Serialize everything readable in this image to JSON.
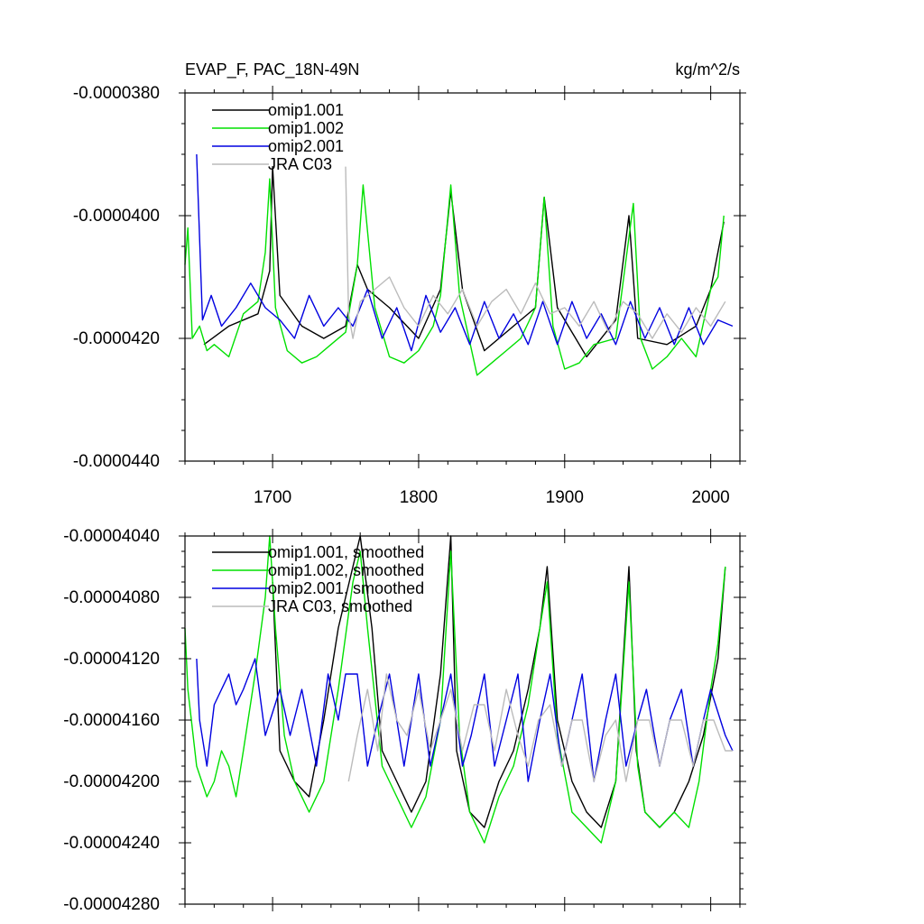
{
  "chart_data": [
    {
      "type": "line",
      "title": "EVAP_F, PAC_18N-49N",
      "units": "kg/m^2/s",
      "xlim": [
        1640,
        2020
      ],
      "xticks": [
        1700,
        1800,
        1900,
        2000
      ],
      "xtick_labels": [
        "1700",
        "1800",
        "1900",
        "2000"
      ],
      "ylim": [
        -4.4e-05,
        -3.8e-05
      ],
      "yticks": [
        -3.8e-05,
        -4e-05,
        -4.2e-05,
        -4.4e-05
      ],
      "ytick_labels": [
        "-0.0000380",
        "-0.0000400",
        "-0.0000420",
        "-0.0000440"
      ],
      "legend": "top-left",
      "legend_labels": [
        "omip1.001",
        "omip1.002",
        "omip2.001",
        "JRA C03"
      ],
      "colors": [
        "#000000",
        "#00e000",
        "#0000e0",
        "#bbbbbb"
      ],
      "series": [
        {
          "name": "omip1.001",
          "x": [
            1653,
            1670,
            1690,
            1698,
            1700,
            1705,
            1720,
            1735,
            1750,
            1758,
            1765,
            1780,
            1800,
            1815,
            1822,
            1830,
            1845,
            1865,
            1880,
            1886,
            1895,
            1915,
            1935,
            1944,
            1950,
            1970,
            1990,
            2000,
            2009
          ],
          "y": [
            -4.21e-05,
            -4.18e-05,
            -4.16e-05,
            -4.09e-05,
            -3.92e-05,
            -4.13e-05,
            -4.18e-05,
            -4.2e-05,
            -4.18e-05,
            -4.08e-05,
            -4.12e-05,
            -4.15e-05,
            -4.2e-05,
            -4.12e-05,
            -3.96e-05,
            -4.12e-05,
            -4.22e-05,
            -4.18e-05,
            -4.15e-05,
            -3.97e-05,
            -4.15e-05,
            -4.23e-05,
            -4.17e-05,
            -4e-05,
            -4.2e-05,
            -4.21e-05,
            -4.18e-05,
            -4.12e-05,
            -4.01e-05
          ]
        },
        {
          "name": "omip1.002",
          "x": [
            1640,
            1642,
            1645,
            1650,
            1655,
            1660,
            1670,
            1680,
            1690,
            1695,
            1698,
            1702,
            1710,
            1720,
            1730,
            1740,
            1750,
            1758,
            1762,
            1770,
            1780,
            1790,
            1800,
            1810,
            1815,
            1822,
            1828,
            1840,
            1850,
            1860,
            1870,
            1880,
            1886,
            1892,
            1900,
            1910,
            1920,
            1935,
            1947,
            1952,
            1960,
            1970,
            1980,
            1990,
            2000,
            2005,
            2009
          ],
          "y": [
            -4.08e-05,
            -4.02e-05,
            -4.2e-05,
            -4.18e-05,
            -4.22e-05,
            -4.21e-05,
            -4.23e-05,
            -4.16e-05,
            -4.14e-05,
            -4.06e-05,
            -3.94e-05,
            -4.15e-05,
            -4.22e-05,
            -4.24e-05,
            -4.23e-05,
            -4.21e-05,
            -4.19e-05,
            -4.08e-05,
            -3.95e-05,
            -4.15e-05,
            -4.23e-05,
            -4.24e-05,
            -4.22e-05,
            -4.18e-05,
            -4.13e-05,
            -3.95e-05,
            -4.13e-05,
            -4.26e-05,
            -4.24e-05,
            -4.22e-05,
            -4.2e-05,
            -4.15e-05,
            -3.97e-05,
            -4.18e-05,
            -4.25e-05,
            -4.24e-05,
            -4.21e-05,
            -4.2e-05,
            -3.98e-05,
            -4.2e-05,
            -4.25e-05,
            -4.23e-05,
            -4.2e-05,
            -4.23e-05,
            -4.12e-05,
            -4.1e-05,
            -4e-05
          ]
        },
        {
          "name": "omip2.001",
          "x": [
            1648,
            1652,
            1658,
            1665,
            1675,
            1685,
            1695,
            1705,
            1715,
            1725,
            1735,
            1745,
            1755,
            1765,
            1775,
            1785,
            1795,
            1805,
            1815,
            1825,
            1835,
            1845,
            1855,
            1865,
            1875,
            1885,
            1895,
            1905,
            1915,
            1925,
            1935,
            1945,
            1955,
            1965,
            1975,
            1985,
            1995,
            2005,
            2015
          ],
          "y": [
            -3.9e-05,
            -4.17e-05,
            -4.13e-05,
            -4.18e-05,
            -4.15e-05,
            -4.11e-05,
            -4.15e-05,
            -4.17e-05,
            -4.2e-05,
            -4.13e-05,
            -4.18e-05,
            -4.15e-05,
            -4.18e-05,
            -4.12e-05,
            -4.2e-05,
            -4.15e-05,
            -4.22e-05,
            -4.13e-05,
            -4.19e-05,
            -4.15e-05,
            -4.21e-05,
            -4.14e-05,
            -4.2e-05,
            -4.16e-05,
            -4.21e-05,
            -4.14e-05,
            -4.21e-05,
            -4.14e-05,
            -4.2e-05,
            -4.16e-05,
            -4.21e-05,
            -4.14e-05,
            -4.2e-05,
            -4.15e-05,
            -4.21e-05,
            -4.15e-05,
            -4.21e-05,
            -4.17e-05,
            -4.18e-05
          ]
        },
        {
          "name": "JRA C03",
          "x": [
            1750,
            1752,
            1755,
            1760,
            1770,
            1780,
            1790,
            1800,
            1810,
            1820,
            1830,
            1840,
            1850,
            1860,
            1870,
            1880,
            1890,
            1900,
            1910,
            1920,
            1930,
            1940,
            1950,
            1960,
            1970,
            1980,
            1990,
            2000,
            2010
          ],
          "y": [
            -3.92e-05,
            -4.16e-05,
            -4.2e-05,
            -4.14e-05,
            -4.12e-05,
            -4.1e-05,
            -4.15e-05,
            -4.18e-05,
            -4.13e-05,
            -4.16e-05,
            -4.12e-05,
            -4.18e-05,
            -4.14e-05,
            -4.12e-05,
            -4.16e-05,
            -4.11e-05,
            -4.16e-05,
            -4.15e-05,
            -4.18e-05,
            -4.14e-05,
            -4.19e-05,
            -4.14e-05,
            -4.16e-05,
            -4.2e-05,
            -4.16e-05,
            -4.19e-05,
            -4.15e-05,
            -4.18e-05,
            -4.14e-05
          ]
        }
      ]
    },
    {
      "type": "line",
      "title": "",
      "units": "",
      "xlim": [
        1640,
        2020
      ],
      "xticks": [
        1700,
        1800,
        1900,
        2000
      ],
      "xtick_labels": [],
      "ylim": [
        -4.28e-05,
        -4.04e-05
      ],
      "yticks": [
        -4.04e-05,
        -4.08e-05,
        -4.12e-05,
        -4.16e-05,
        -4.2e-05,
        -4.24e-05,
        -4.28e-05
      ],
      "ytick_labels": [
        "-0.00004040",
        "-0.00004080",
        "-0.00004120",
        "-0.00004160",
        "-0.00004200",
        "-0.00004240",
        "-0.00004280"
      ],
      "legend": "top",
      "legend_labels": [
        "omip1.001, smoothed",
        "omip1.002, smoothed",
        "omip2.001, smoothed",
        "JRA C03, smoothed"
      ],
      "colors": [
        "#000000",
        "#00e000",
        "#0000e0",
        "#bbbbbb"
      ],
      "series": [
        {
          "name": "omip1.001, smoothed",
          "x": [
            1700,
            1705,
            1715,
            1725,
            1735,
            1745,
            1755,
            1760,
            1768,
            1775,
            1785,
            1795,
            1805,
            1815,
            1822,
            1826,
            1835,
            1845,
            1855,
            1865,
            1875,
            1883,
            1888,
            1895,
            1905,
            1915,
            1925,
            1935,
            1944,
            1949,
            1955,
            1965,
            1975,
            1985,
            1995,
            2005,
            2010
          ],
          "y": [
            -4.07e-05,
            -4.18e-05,
            -4.2e-05,
            -4.21e-05,
            -4.16e-05,
            -4.1e-05,
            -4.06e-05,
            -4.04e-05,
            -4.1e-05,
            -4.18e-05,
            -4.2e-05,
            -4.22e-05,
            -4.2e-05,
            -4.13e-05,
            -4.04e-05,
            -4.18e-05,
            -4.22e-05,
            -4.23e-05,
            -4.2e-05,
            -4.18e-05,
            -4.14e-05,
            -4.1e-05,
            -4.06e-05,
            -4.16e-05,
            -4.2e-05,
            -4.22e-05,
            -4.23e-05,
            -4.2e-05,
            -4.06e-05,
            -4.18e-05,
            -4.22e-05,
            -4.23e-05,
            -4.22e-05,
            -4.2e-05,
            -4.17e-05,
            -4.12e-05,
            -4.06e-05
          ]
        },
        {
          "name": "omip1.002, smoothed",
          "x": [
            1640,
            1642,
            1648,
            1655,
            1660,
            1665,
            1670,
            1675,
            1680,
            1688,
            1695,
            1698,
            1702,
            1708,
            1715,
            1725,
            1735,
            1745,
            1755,
            1760,
            1765,
            1775,
            1785,
            1795,
            1805,
            1815,
            1822,
            1828,
            1835,
            1845,
            1855,
            1865,
            1875,
            1883,
            1888,
            1895,
            1905,
            1915,
            1925,
            1935,
            1944,
            1950,
            1955,
            1965,
            1975,
            1985,
            1992,
            2000,
            2005,
            2010
          ],
          "y": [
            -4.1e-05,
            -4.14e-05,
            -4.19e-05,
            -4.21e-05,
            -4.2e-05,
            -4.18e-05,
            -4.19e-05,
            -4.21e-05,
            -4.18e-05,
            -4.13e-05,
            -4.08e-05,
            -4.04e-05,
            -4.1e-05,
            -4.17e-05,
            -4.2e-05,
            -4.22e-05,
            -4.2e-05,
            -4.14e-05,
            -4.07e-05,
            -4.05e-05,
            -4.1e-05,
            -4.19e-05,
            -4.21e-05,
            -4.23e-05,
            -4.21e-05,
            -4.16e-05,
            -4.05e-05,
            -4.17e-05,
            -4.22e-05,
            -4.24e-05,
            -4.21e-05,
            -4.19e-05,
            -4.15e-05,
            -4.1e-05,
            -4.07e-05,
            -4.17e-05,
            -4.22e-05,
            -4.23e-05,
            -4.24e-05,
            -4.2e-05,
            -4.07e-05,
            -4.19e-05,
            -4.22e-05,
            -4.23e-05,
            -4.22e-05,
            -4.23e-05,
            -4.2e-05,
            -4.14e-05,
            -4.11e-05,
            -4.06e-05
          ]
        },
        {
          "name": "omip2.001, smoothed",
          "x": [
            1648,
            1650,
            1655,
            1660,
            1665,
            1670,
            1675,
            1680,
            1688,
            1695,
            1705,
            1712,
            1720,
            1730,
            1738,
            1745,
            1750,
            1758,
            1765,
            1772,
            1780,
            1790,
            1795,
            1800,
            1808,
            1815,
            1822,
            1830,
            1836,
            1845,
            1852,
            1860,
            1868,
            1875,
            1883,
            1890,
            1898,
            1905,
            1912,
            1920,
            1928,
            1935,
            1942,
            1950,
            1956,
            1965,
            1972,
            1980,
            1988,
            1995,
            2000,
            2010,
            2015
          ],
          "y": [
            -4.12e-05,
            -4.16e-05,
            -4.19e-05,
            -4.15e-05,
            -4.14e-05,
            -4.13e-05,
            -4.15e-05,
            -4.14e-05,
            -4.12e-05,
            -4.17e-05,
            -4.14e-05,
            -4.17e-05,
            -4.14e-05,
            -4.19e-05,
            -4.13e-05,
            -4.16e-05,
            -4.13e-05,
            -4.13e-05,
            -4.19e-05,
            -4.16e-05,
            -4.13e-05,
            -4.19e-05,
            -4.16e-05,
            -4.13e-05,
            -4.19e-05,
            -4.16e-05,
            -4.13e-05,
            -4.19e-05,
            -4.17e-05,
            -4.13e-05,
            -4.19e-05,
            -4.16e-05,
            -4.13e-05,
            -4.2e-05,
            -4.16e-05,
            -4.13e-05,
            -4.19e-05,
            -4.16e-05,
            -4.13e-05,
            -4.2e-05,
            -4.16e-05,
            -4.13e-05,
            -4.19e-05,
            -4.16e-05,
            -4.14e-05,
            -4.19e-05,
            -4.16e-05,
            -4.14e-05,
            -4.19e-05,
            -4.16e-05,
            -4.14e-05,
            -4.17e-05,
            -4.18e-05
          ]
        },
        {
          "name": "JRA C03, smoothed",
          "x": [
            1752,
            1758,
            1765,
            1772,
            1778,
            1785,
            1792,
            1800,
            1808,
            1815,
            1822,
            1830,
            1838,
            1845,
            1852,
            1860,
            1868,
            1875,
            1882,
            1890,
            1898,
            1905,
            1912,
            1920,
            1928,
            1935,
            1942,
            1950,
            1958,
            1965,
            1972,
            1980,
            1988,
            1995,
            2002,
            2010,
            2015
          ],
          "y": [
            -4.2e-05,
            -4.17e-05,
            -4.14e-05,
            -4.18e-05,
            -4.13e-05,
            -4.16e-05,
            -4.17e-05,
            -4.14e-05,
            -4.18e-05,
            -4.16e-05,
            -4.14e-05,
            -4.18e-05,
            -4.15e-05,
            -4.15e-05,
            -4.18e-05,
            -4.14e-05,
            -4.17e-05,
            -4.19e-05,
            -4.16e-05,
            -4.15e-05,
            -4.19e-05,
            -4.16e-05,
            -4.16e-05,
            -4.2e-05,
            -4.17e-05,
            -4.16e-05,
            -4.2e-05,
            -4.16e-05,
            -4.16e-05,
            -4.19e-05,
            -4.16e-05,
            -4.16e-05,
            -4.19e-05,
            -4.16e-05,
            -4.16e-05,
            -4.18e-05,
            -4.18e-05
          ]
        }
      ]
    }
  ]
}
